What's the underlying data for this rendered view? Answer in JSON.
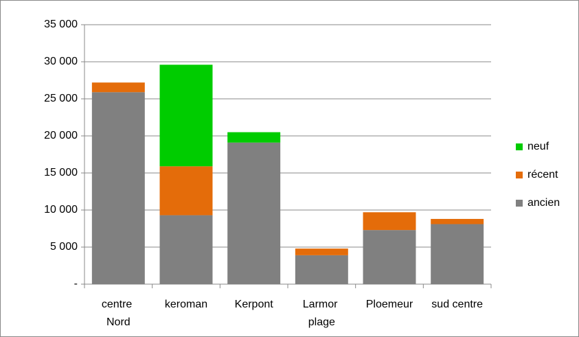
{
  "chart_data": {
    "type": "stacked_bar",
    "categories": [
      "centre Nord",
      "keroman",
      "Kerpont",
      "Larmor plage",
      "Ploemeur",
      "sud centre"
    ],
    "series": [
      {
        "name": "ancien",
        "color": "#808080",
        "values": [
          25900,
          9300,
          19100,
          3900,
          7300,
          8100
        ]
      },
      {
        "name": "récent",
        "color": "#e46c0a",
        "values": [
          1300,
          6600,
          0,
          900,
          2400,
          700
        ]
      },
      {
        "name": "neuf",
        "color": "#00cc00",
        "values": [
          0,
          13700,
          1400,
          0,
          0,
          0
        ]
      }
    ],
    "ylim": [
      0,
      35000
    ],
    "yticks": [
      {
        "value": 0,
        "label": "-"
      },
      {
        "value": 5000,
        "label": "5 000"
      },
      {
        "value": 10000,
        "label": "10 000"
      },
      {
        "value": 15000,
        "label": "15 000"
      },
      {
        "value": 20000,
        "label": "20 000"
      },
      {
        "value": 25000,
        "label": "25 000"
      },
      {
        "value": 30000,
        "label": "30 000"
      },
      {
        "value": 35000,
        "label": "35 000"
      }
    ],
    "grid": true,
    "legend": "right"
  }
}
